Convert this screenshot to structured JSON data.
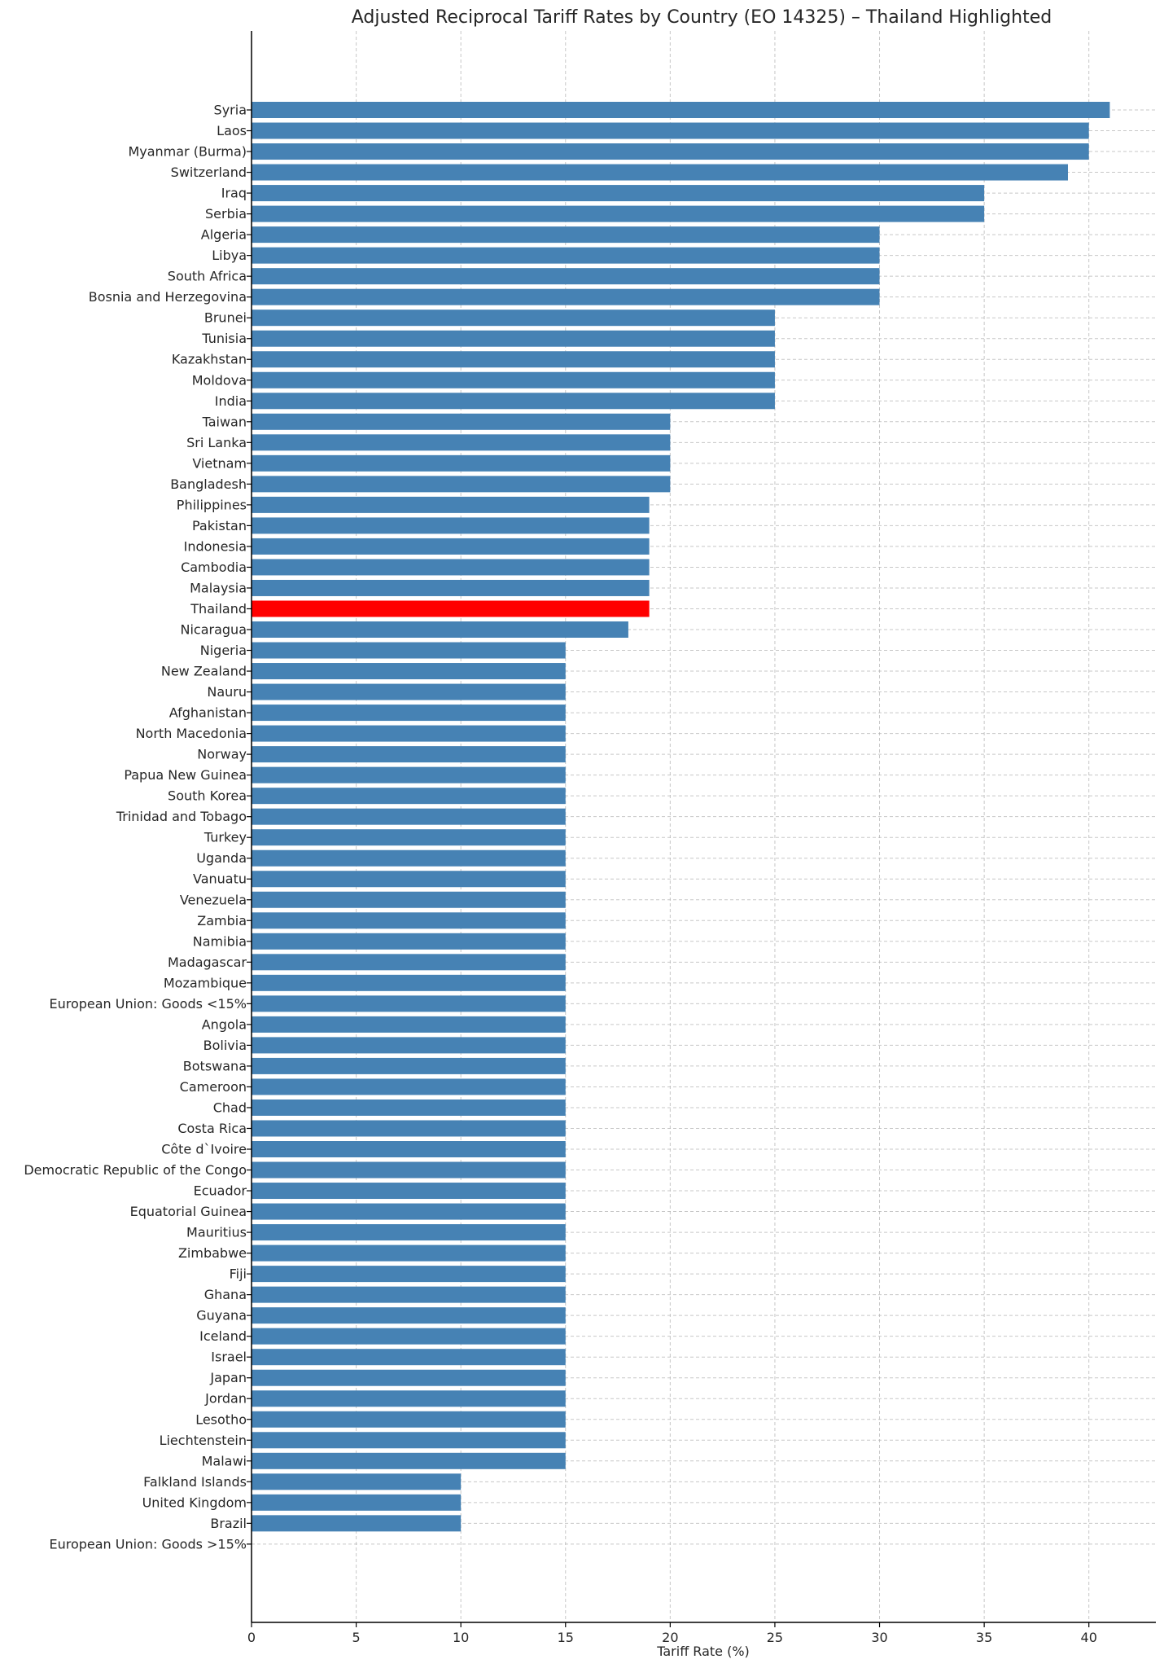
{
  "chart_data": {
    "type": "bar",
    "orientation": "horizontal",
    "title": "Adjusted Reciprocal Tariff Rates by Country (EO 14325) – Thailand Highlighted",
    "xlabel": "Tariff Rate (%)",
    "ylabel": "",
    "xlim": [
      0,
      43.2
    ],
    "xticks": [
      0,
      5,
      10,
      15,
      20,
      25,
      30,
      35,
      40
    ],
    "grid": true,
    "colors": {
      "default": "#4682b4",
      "highlight": "#ff0000"
    },
    "highlight": "Thailand",
    "categories": [
      "Syria",
      "Laos",
      "Myanmar (Burma)",
      "Switzerland",
      "Iraq",
      "Serbia",
      "Algeria",
      "Libya",
      "South Africa",
      "Bosnia and Herzegovina",
      "Brunei",
      "Tunisia",
      "Kazakhstan",
      "Moldova",
      "India",
      "Taiwan",
      "Sri Lanka",
      "Vietnam",
      "Bangladesh",
      "Philippines",
      "Pakistan",
      "Indonesia",
      "Cambodia",
      "Malaysia",
      "Thailand",
      "Nicaragua",
      "Nigeria",
      "New Zealand",
      "Nauru",
      "Afghanistan",
      "North Macedonia",
      "Norway",
      "Papua New Guinea",
      "South Korea",
      "Trinidad and Tobago",
      "Turkey",
      "Uganda",
      "Vanuatu",
      "Venezuela",
      "Zambia",
      "Namibia",
      "Madagascar",
      "Mozambique",
      "European Union: Goods <15%",
      "Angola",
      "Bolivia",
      "Botswana",
      "Cameroon",
      "Chad",
      "Costa Rica",
      "Côte d`Ivoire",
      "Democratic Republic of the Congo",
      "Ecuador",
      "Equatorial Guinea",
      "Mauritius",
      "Zimbabwe",
      "Fiji",
      "Ghana",
      "Guyana",
      "Iceland",
      "Israel",
      "Japan",
      "Jordan",
      "Lesotho",
      "Liechtenstein",
      "Malawi",
      "Falkland Islands",
      "United Kingdom",
      "Brazil",
      "European Union: Goods >15%"
    ],
    "values": [
      41,
      40,
      40,
      39,
      35,
      35,
      30,
      30,
      30,
      30,
      25,
      25,
      25,
      25,
      25,
      20,
      20,
      20,
      20,
      19,
      19,
      19,
      19,
      19,
      19,
      18,
      15,
      15,
      15,
      15,
      15,
      15,
      15,
      15,
      15,
      15,
      15,
      15,
      15,
      15,
      15,
      15,
      15,
      15,
      15,
      15,
      15,
      15,
      15,
      15,
      15,
      15,
      15,
      15,
      15,
      15,
      15,
      15,
      15,
      15,
      15,
      15,
      15,
      15,
      15,
      15,
      10,
      10,
      10,
      0
    ]
  }
}
